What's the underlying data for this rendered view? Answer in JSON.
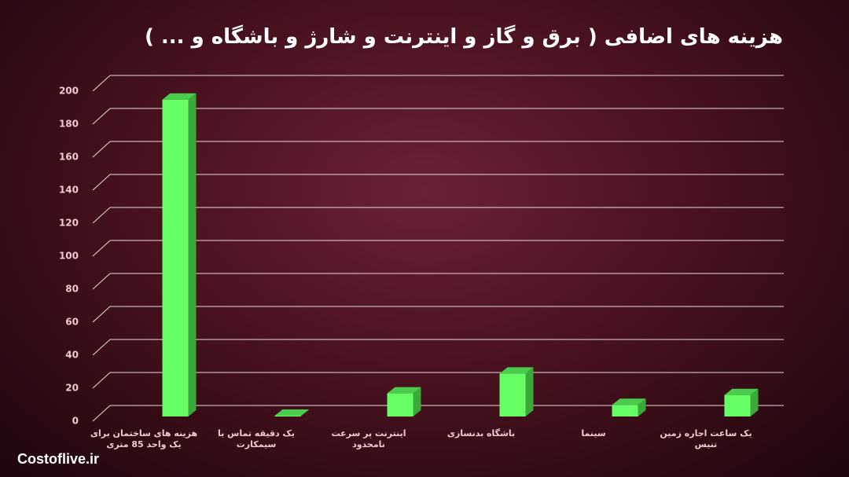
{
  "chart_data": {
    "type": "bar3d",
    "title": "هزینه های اضافی ( برق و گاز و اینترنت و شارژ و باشگاه و ... )",
    "categories": [
      "هزینه های ساختمان برای یک واحد 85 متری",
      "یک دقیقه تماس با سیمکارت",
      "اینترنت پر سرعت نامحدود",
      "باشگاه بدنسازی",
      "سینما",
      "یک ساعت اجاره زمین تنیس"
    ],
    "values": [
      192,
      0.5,
      14,
      26,
      7,
      13
    ],
    "color": "#66ff66",
    "ylim": [
      0,
      200
    ],
    "yticks": [
      0,
      20,
      40,
      60,
      80,
      100,
      120,
      140,
      160,
      180,
      200
    ],
    "grid": true
  },
  "watermark": "Costoflive.ir"
}
